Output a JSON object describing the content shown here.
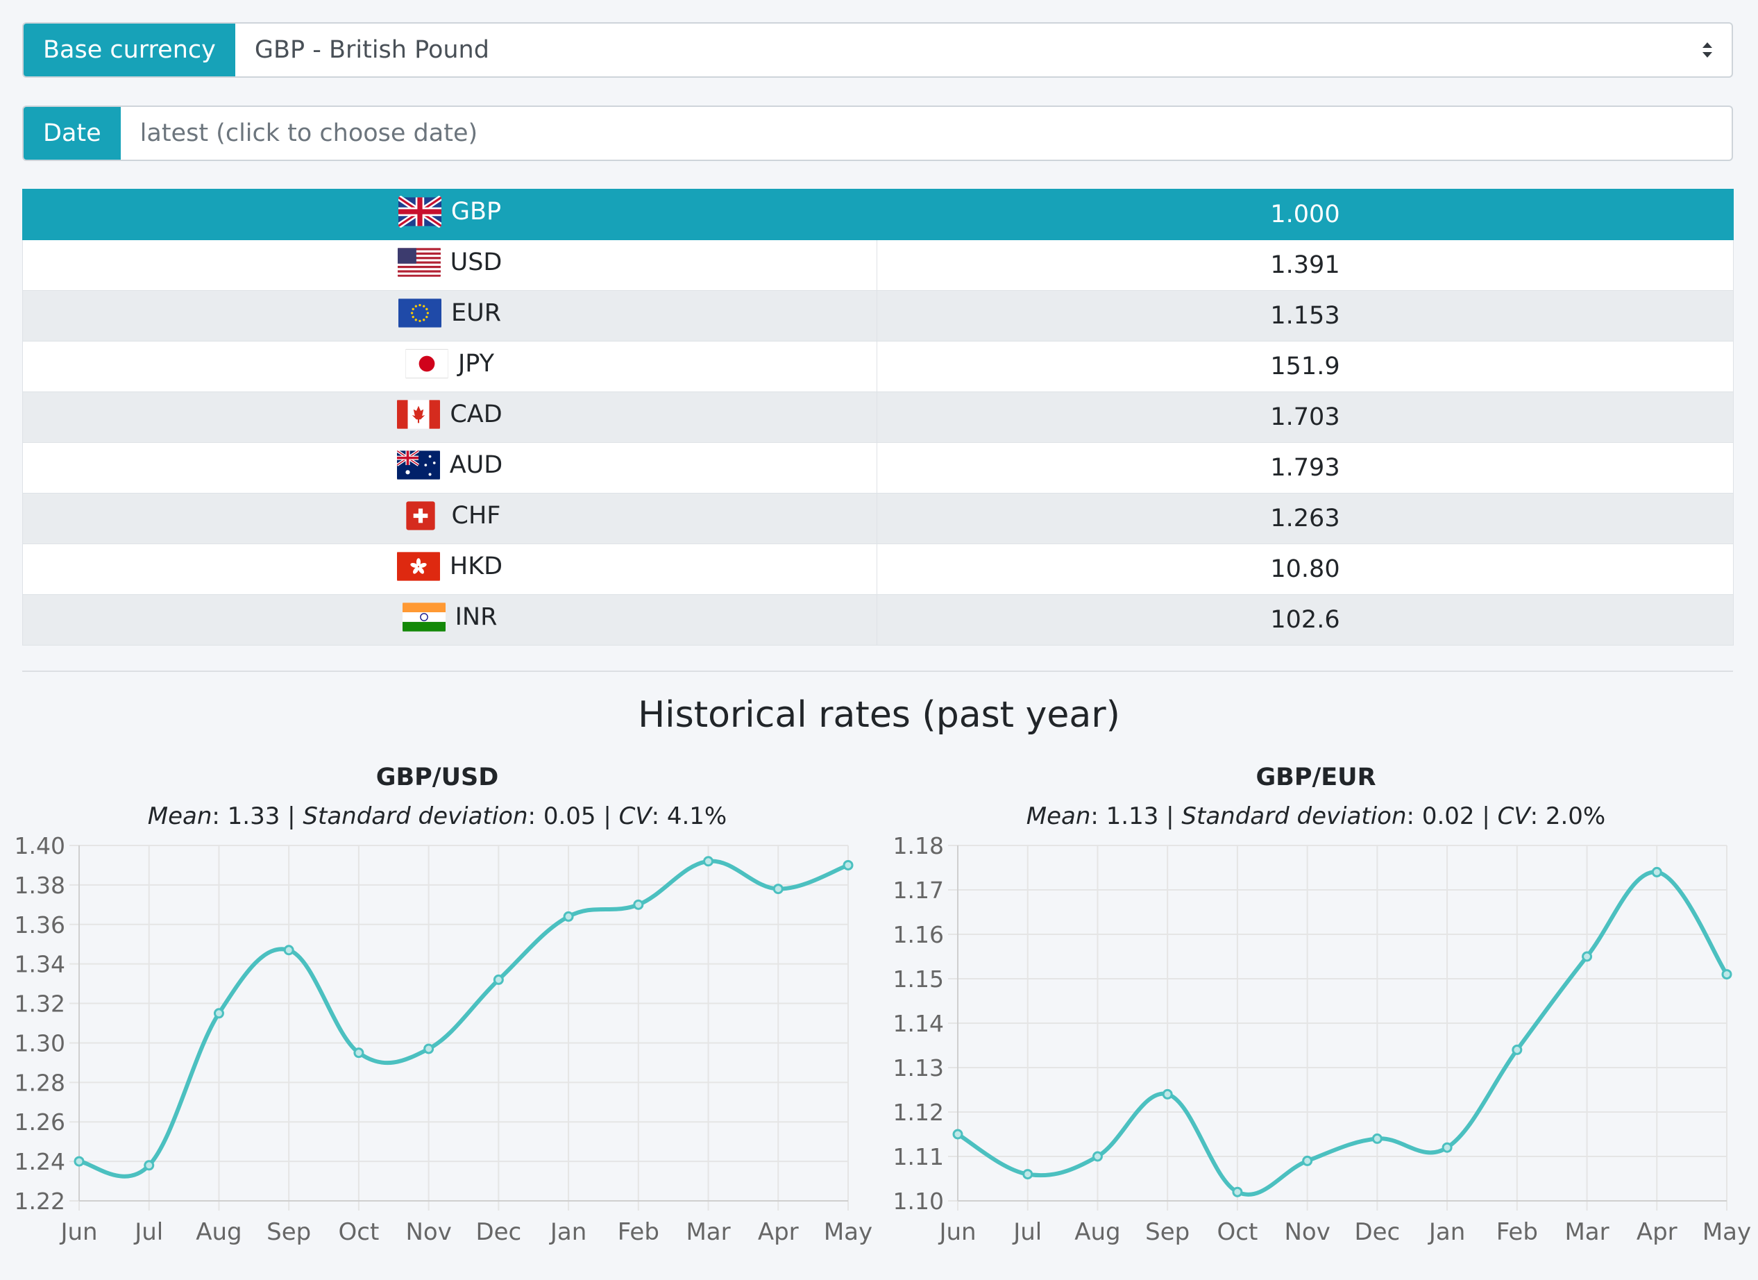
{
  "base_currency": {
    "label": "Base currency",
    "value": "GBP - British Pound"
  },
  "date": {
    "label": "Date",
    "placeholder": "latest (click to choose date)"
  },
  "rates": [
    {
      "code": "GBP",
      "flag": "uk-flag-icon",
      "rate": "1.000",
      "active": true
    },
    {
      "code": "USD",
      "flag": "us-flag-icon",
      "rate": "1.391"
    },
    {
      "code": "EUR",
      "flag": "eu-flag-icon",
      "rate": "1.153"
    },
    {
      "code": "JPY",
      "flag": "jp-flag-icon",
      "rate": "151.9"
    },
    {
      "code": "CAD",
      "flag": "ca-flag-icon",
      "rate": "1.703"
    },
    {
      "code": "AUD",
      "flag": "au-flag-icon",
      "rate": "1.793"
    },
    {
      "code": "CHF",
      "flag": "ch-flag-icon",
      "rate": "1.263"
    },
    {
      "code": "HKD",
      "flag": "hk-flag-icon",
      "rate": "10.80"
    },
    {
      "code": "INR",
      "flag": "in-flag-icon",
      "rate": "102.6"
    }
  ],
  "historical": {
    "title": "Historical rates (past year)"
  },
  "colors": {
    "accent": "#17a2b8",
    "line": "#4bc0c0",
    "grid": "#e5e5e5"
  },
  "chart_data": [
    {
      "type": "line",
      "title": "GBP/USD",
      "stats": {
        "mean_label": "Mean",
        "mean": "1.33",
        "sd_label": "Standard deviation",
        "sd": "0.05",
        "cv_label": "CV",
        "cv": "4.1%"
      },
      "x": [
        "Jun",
        "Jul",
        "Aug",
        "Sep",
        "Oct",
        "Nov",
        "Dec",
        "Jan",
        "Feb",
        "Mar",
        "Apr",
        "May"
      ],
      "values": [
        1.24,
        1.238,
        1.315,
        1.347,
        1.295,
        1.297,
        1.332,
        1.364,
        1.37,
        1.392,
        1.378,
        1.39
      ],
      "ylim": [
        1.22,
        1.4
      ],
      "yticks": [
        "1.40",
        "1.38",
        "1.36",
        "1.34",
        "1.32",
        "1.30",
        "1.28",
        "1.26",
        "1.24",
        "1.22"
      ],
      "grid": true
    },
    {
      "type": "line",
      "title": "GBP/EUR",
      "stats": {
        "mean_label": "Mean",
        "mean": "1.13",
        "sd_label": "Standard deviation",
        "sd": "0.02",
        "cv_label": "CV",
        "cv": "2.0%"
      },
      "x": [
        "Jun",
        "Jul",
        "Aug",
        "Sep",
        "Oct",
        "Nov",
        "Dec",
        "Jan",
        "Feb",
        "Mar",
        "Apr",
        "May"
      ],
      "values": [
        1.115,
        1.106,
        1.11,
        1.124,
        1.102,
        1.109,
        1.114,
        1.112,
        1.134,
        1.155,
        1.174,
        1.151
      ],
      "ylim": [
        1.1,
        1.18
      ],
      "yticks": [
        "1.18",
        "1.17",
        "1.16",
        "1.15",
        "1.14",
        "1.13",
        "1.12",
        "1.11",
        "1.10"
      ],
      "grid": true
    }
  ]
}
